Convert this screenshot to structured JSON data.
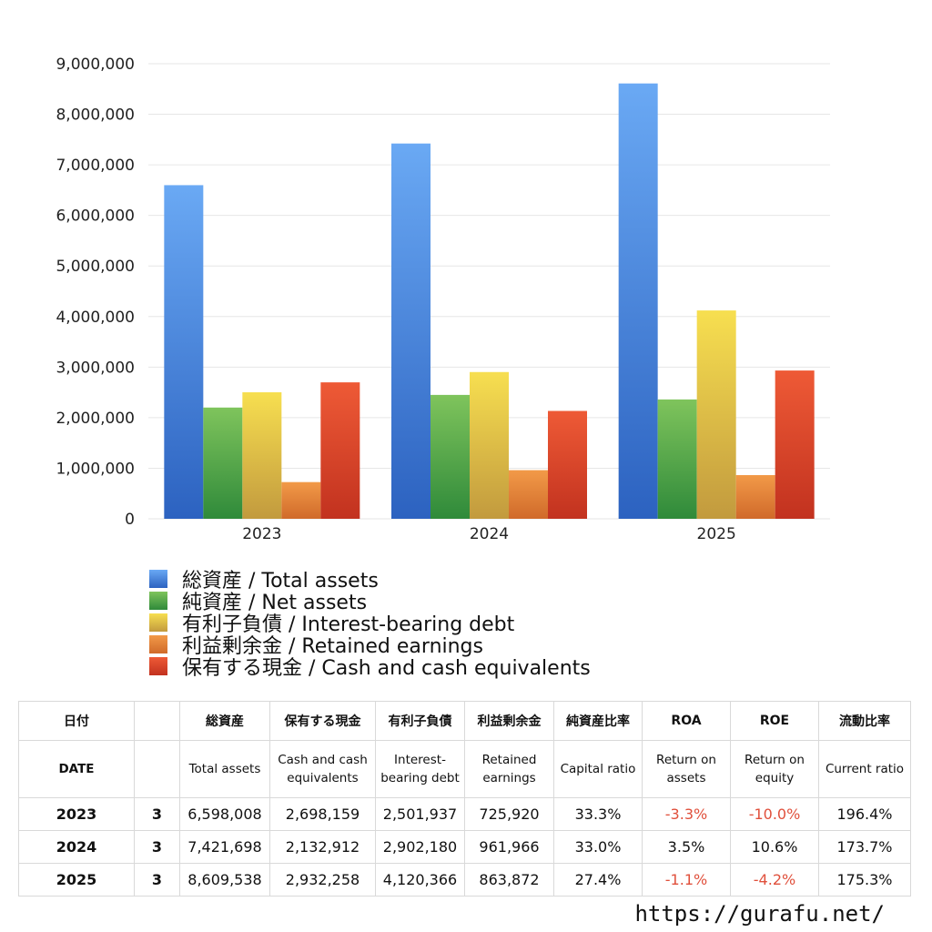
{
  "chart_data": {
    "type": "bar",
    "categories": [
      "2023",
      "2024",
      "2025"
    ],
    "ylim": [
      0,
      9000000
    ],
    "yticks": [
      "0",
      "1,000,000",
      "2,000,000",
      "3,000,000",
      "4,000,000",
      "5,000,000",
      "6,000,000",
      "7,000,000",
      "8,000,000",
      "9,000,000"
    ],
    "grid": true,
    "legend_position": "bottom-left",
    "series": [
      {
        "name": "総資産 / Total assets",
        "values": [
          6598008,
          7421698,
          8609538
        ],
        "color_top": "#6aa9f4",
        "color_bottom": "#2c62c0"
      },
      {
        "name": "純資産 / Net assets",
        "values": [
          2200000,
          2450000,
          2360000
        ],
        "color_top": "#7fc45c",
        "color_bottom": "#2f8a3a"
      },
      {
        "name": "有利子負債 / Interest-bearing debt",
        "values": [
          2501937,
          2902180,
          4120366
        ],
        "color_top": "#f7df50",
        "color_bottom": "#c29a3e"
      },
      {
        "name": "利益剰余金 / Retained earnings",
        "values": [
          725920,
          961966,
          863872
        ],
        "color_top": "#f29a48",
        "color_bottom": "#d06a2a"
      },
      {
        "name": "保有する現金 /  Cash and cash equivalents",
        "values": [
          2698159,
          2132912,
          2932258
        ],
        "color_top": "#ee5a36",
        "color_bottom": "#c2321f"
      }
    ]
  },
  "table": {
    "header_jp": [
      "日付",
      "",
      "総資産",
      "保有する現金",
      "有利子負債",
      "利益剰余金",
      "純資産比率",
      "ROA",
      "ROE",
      "流動比率"
    ],
    "header_en": [
      "DATE",
      "",
      "Total assets",
      "Cash and cash equivalents",
      "Interest-bearing debt",
      "Retained earnings",
      "Capital ratio",
      "Return on assets",
      "Return on equity",
      "Current ratio"
    ],
    "rows": [
      {
        "date": "2023",
        "q": "3",
        "total": "6,598,008",
        "cash": "2,698,159",
        "debt": "2,501,937",
        "retained": "725,920",
        "capital": "33.3%",
        "roa": "-3.3%",
        "roe": "-10.0%",
        "current": "196.4%"
      },
      {
        "date": "2024",
        "q": "3",
        "total": "7,421,698",
        "cash": "2,132,912",
        "debt": "2,902,180",
        "retained": "961,966",
        "capital": "33.0%",
        "roa": "3.5%",
        "roe": "10.6%",
        "current": "173.7%"
      },
      {
        "date": "2025",
        "q": "3",
        "total": "8,609,538",
        "cash": "2,932,258",
        "debt": "4,120,366",
        "retained": "863,872",
        "capital": "27.4%",
        "roa": "-1.1%",
        "roe": "-4.2%",
        "current": "175.3%"
      }
    ]
  },
  "colors": {
    "negative": "#e0503c"
  },
  "footer": {
    "url": "https://gurafu.net/"
  }
}
